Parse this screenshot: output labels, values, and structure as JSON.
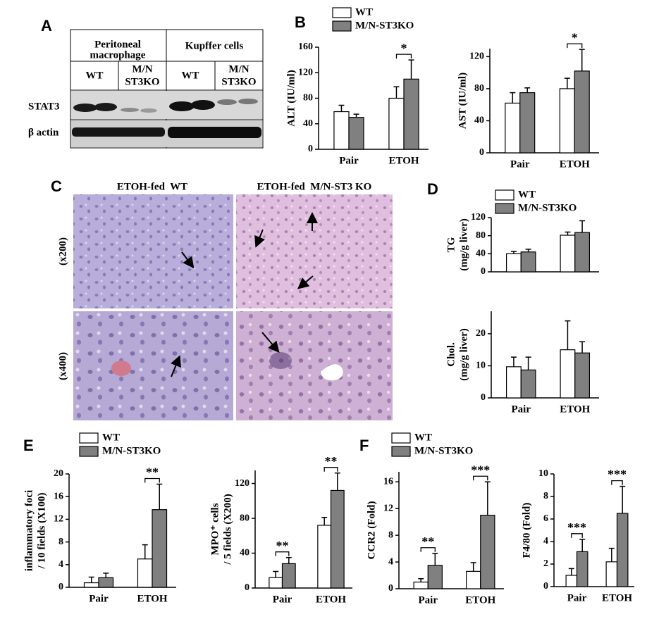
{
  "blot": {
    "panel": "A",
    "groups": [
      {
        "label": [
          "Peritoneal",
          "macrophage"
        ],
        "columns": [
          [
            "WT"
          ],
          [
            "M/N",
            "ST3KO"
          ]
        ]
      },
      {
        "label": [
          "Kupffer cells"
        ],
        "columns": [
          [
            "WT"
          ],
          [
            "M/N",
            "ST3KO"
          ]
        ]
      }
    ],
    "rows": [
      "STAT3",
      "β actin"
    ]
  },
  "histology": {
    "panel": "C",
    "columns": [
      "ETOH-fed  WT",
      "ETOH-fed  M/N-ST3 KO"
    ],
    "rows": [
      "(x200)",
      "(x400)"
    ]
  },
  "chart_data": [
    {
      "type": "bar",
      "panel": "B",
      "legend": true,
      "ylabel": [
        "ALT (IU/ml)"
      ],
      "categories": [
        "Pair",
        "ETOH"
      ],
      "series": [
        {
          "name": "WT",
          "color": "#ffffff",
          "values": [
            59,
            80
          ],
          "errors": [
            10,
            18
          ]
        },
        {
          "name": "M/N-ST3KO",
          "color": "#808080",
          "values": [
            50,
            110
          ],
          "errors": [
            5,
            30
          ]
        }
      ],
      "ylim": [
        0,
        160
      ],
      "yticks": [
        0,
        40,
        80,
        120,
        160
      ],
      "significance": [
        null,
        "*"
      ]
    },
    {
      "type": "bar",
      "ylabel": [
        "AST (IU/ml)"
      ],
      "categories": [
        "Pair",
        "ETOH"
      ],
      "series": [
        {
          "color": "#ffffff",
          "values": [
            62,
            80
          ],
          "errors": [
            13,
            13
          ]
        },
        {
          "color": "#808080",
          "values": [
            75,
            102
          ],
          "errors": [
            6,
            27
          ]
        }
      ],
      "ylim": [
        0,
        130
      ],
      "yticks": [
        0,
        40,
        80,
        120
      ],
      "significance": [
        null,
        "*"
      ]
    },
    {
      "type": "bar",
      "panel": "D",
      "legend": true,
      "ylabel": [
        "TG",
        "(mg/g liver)"
      ],
      "categories": [
        null,
        null
      ],
      "series": [
        {
          "name": "WT",
          "color": "#ffffff",
          "values": [
            40,
            81
          ],
          "errors": [
            5,
            7
          ]
        },
        {
          "name": "M/N-ST3KO",
          "color": "#808080",
          "values": [
            44,
            87
          ],
          "errors": [
            6,
            26
          ]
        }
      ],
      "ylim": [
        0,
        120
      ],
      "yticks": [
        0,
        40,
        80,
        120
      ]
    },
    {
      "type": "bar",
      "ylabel": [
        "Chol.",
        "(mg/g liver)"
      ],
      "categories": [
        "Pair",
        "ETOH"
      ],
      "series": [
        {
          "color": "#ffffff",
          "values": [
            9.7,
            15
          ],
          "errors": [
            3,
            9
          ]
        },
        {
          "color": "#808080",
          "values": [
            8.7,
            14
          ],
          "errors": [
            4,
            3.5
          ]
        }
      ],
      "ylim": [
        0,
        27
      ],
      "yticks": [
        0,
        10,
        20
      ]
    },
    {
      "type": "bar",
      "panel": "E",
      "legend": true,
      "ylabel": [
        "inflammatory foci",
        "/ 10 fields (X100)"
      ],
      "categories": [
        "Pair",
        "ETOH"
      ],
      "series": [
        {
          "name": "WT",
          "color": "#ffffff",
          "values": [
            0.8,
            5
          ],
          "errors": [
            1,
            2.5
          ]
        },
        {
          "name": "M/N-ST3KO",
          "color": "#808080",
          "values": [
            1.7,
            13.7
          ],
          "errors": [
            0.8,
            4.5
          ]
        }
      ],
      "ylim": [
        0,
        20
      ],
      "yticks": [
        0,
        4,
        8,
        12,
        16,
        20
      ],
      "significance": [
        null,
        "**"
      ]
    },
    {
      "type": "bar",
      "ylabel": [
        "MPO⁺ cells",
        "/ 5 fields (X200)"
      ],
      "categories": [
        "Pair",
        "ETOH"
      ],
      "series": [
        {
          "color": "#ffffff",
          "values": [
            12,
            72
          ],
          "errors": [
            7,
            9
          ]
        },
        {
          "color": "#808080",
          "values": [
            28,
            112
          ],
          "errors": [
            7,
            20
          ]
        }
      ],
      "ylim": [
        0,
        135
      ],
      "yticks": [
        0,
        40,
        80,
        120
      ],
      "significance": [
        "**",
        "**"
      ]
    },
    {
      "type": "bar",
      "panel": "F",
      "legend": true,
      "ylabel": [
        "CCR2 (Fold)"
      ],
      "categories": [
        "Pair",
        "ETOH"
      ],
      "series": [
        {
          "name": "WT",
          "color": "#ffffff",
          "values": [
            1,
            2.6
          ],
          "errors": [
            0.5,
            1.3
          ]
        },
        {
          "name": "M/N-ST3KO",
          "color": "#808080",
          "values": [
            3.5,
            11
          ],
          "errors": [
            1.8,
            5
          ]
        }
      ],
      "ylim": [
        0,
        17.5
      ],
      "yticks": [
        0,
        4,
        8,
        12,
        16
      ],
      "significance": [
        "**",
        "***"
      ]
    },
    {
      "type": "bar",
      "ylabel": [
        "F4/80 (Fold)"
      ],
      "categories": [
        "Pair",
        "ETOH"
      ],
      "series": [
        {
          "color": "#ffffff",
          "values": [
            1,
            2.2
          ],
          "errors": [
            0.6,
            1.2
          ]
        },
        {
          "color": "#808080",
          "values": [
            3.1,
            6.5
          ],
          "errors": [
            1.1,
            2.4
          ]
        }
      ],
      "ylim": [
        0,
        10
      ],
      "yticks": [
        0,
        2,
        4,
        6,
        8,
        10
      ],
      "significance": [
        "***",
        "***"
      ]
    }
  ]
}
